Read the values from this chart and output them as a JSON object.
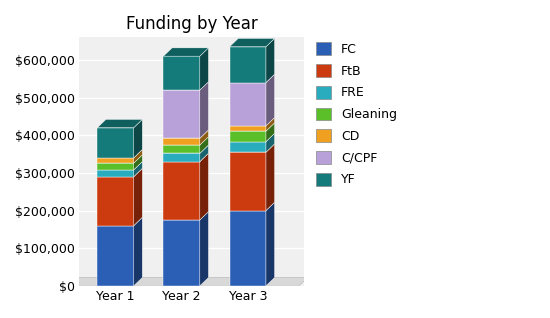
{
  "title": "Funding by Year",
  "categories": [
    "Year 1",
    "Year 2",
    "Year 3"
  ],
  "series": {
    "FC": [
      160000,
      175000,
      200000
    ],
    "FtB": [
      130000,
      155000,
      155000
    ],
    "FRE": [
      18000,
      22000,
      28000
    ],
    "Gleaning": [
      18000,
      22000,
      28000
    ],
    "CD": [
      14000,
      18000,
      14000
    ],
    "C/CPF": [
      0,
      128000,
      115000
    ],
    "YF": [
      80000,
      90000,
      95000
    ]
  },
  "colors": {
    "FC": "#2B5EB5",
    "FtB": "#CC3A0F",
    "FRE": "#2AACBF",
    "Gleaning": "#5BBF2A",
    "CD": "#F0A020",
    "C/CPF": "#B8A0D8",
    "YF": "#157A7A"
  },
  "ylim": [
    0,
    660000
  ],
  "yticks": [
    0,
    100000,
    200000,
    300000,
    400000,
    500000,
    600000
  ],
  "ytick_labels": [
    "$0",
    "$100,000",
    "$200,000",
    "$300,000",
    "$400,000",
    "$500,000",
    "$600,000"
  ],
  "background_color": "#ffffff",
  "plot_bg_color": "#f0f0f0",
  "grid_color": "#ffffff",
  "title_fontsize": 12,
  "label_fontsize": 9,
  "legend_fontsize": 9
}
